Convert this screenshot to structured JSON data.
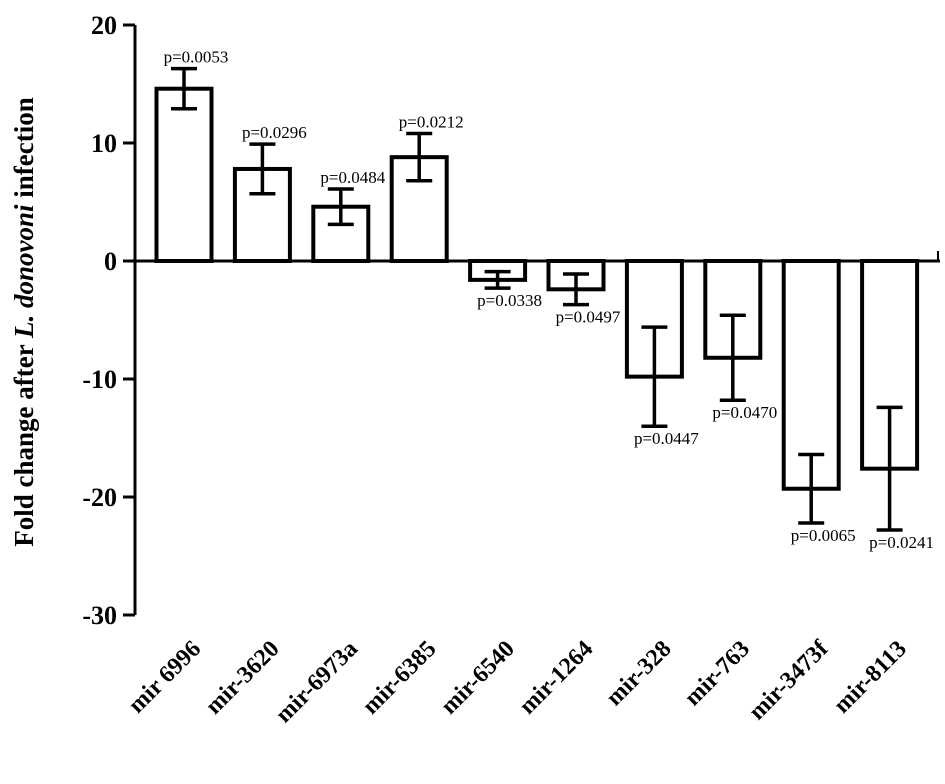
{
  "chart_data": {
    "type": "bar",
    "title": "",
    "xlabel": "",
    "ylabel": {
      "prefix": "Fold change after ",
      "italic": "L. donovoni",
      "suffix": " infection"
    },
    "ylim": [
      -30,
      20
    ],
    "yticks": [
      20,
      10,
      0,
      -10,
      -20,
      -30
    ],
    "ytick_labels": [
      "20",
      "10",
      "0",
      "-10",
      "-20",
      "-30"
    ],
    "categories": [
      "mir 6996",
      "mir-3620",
      "mir-6973a",
      "mir-6385",
      "mir-6540",
      "mir-1264",
      "mir-328",
      "mir-763",
      "mir-3473f",
      "mir-8113"
    ],
    "values": [
      14.6,
      7.8,
      4.6,
      8.8,
      -1.6,
      -2.4,
      -9.8,
      -8.2,
      -19.3,
      -17.6
    ],
    "errors": [
      1.7,
      2.1,
      1.5,
      2.0,
      0.7,
      1.3,
      4.2,
      3.6,
      2.9,
      5.2
    ],
    "pvalues": [
      "p=0.0053",
      "p=0.0296",
      "p=0.0484",
      "p=0.0212",
      "p=0.0338",
      "p=0.0497",
      "p=0.0447",
      "p=0.0470",
      "p=0.0065",
      "p=0.0241"
    ],
    "grid": false,
    "bar_fill": "#ffffff",
    "bar_stroke": "#000000"
  }
}
